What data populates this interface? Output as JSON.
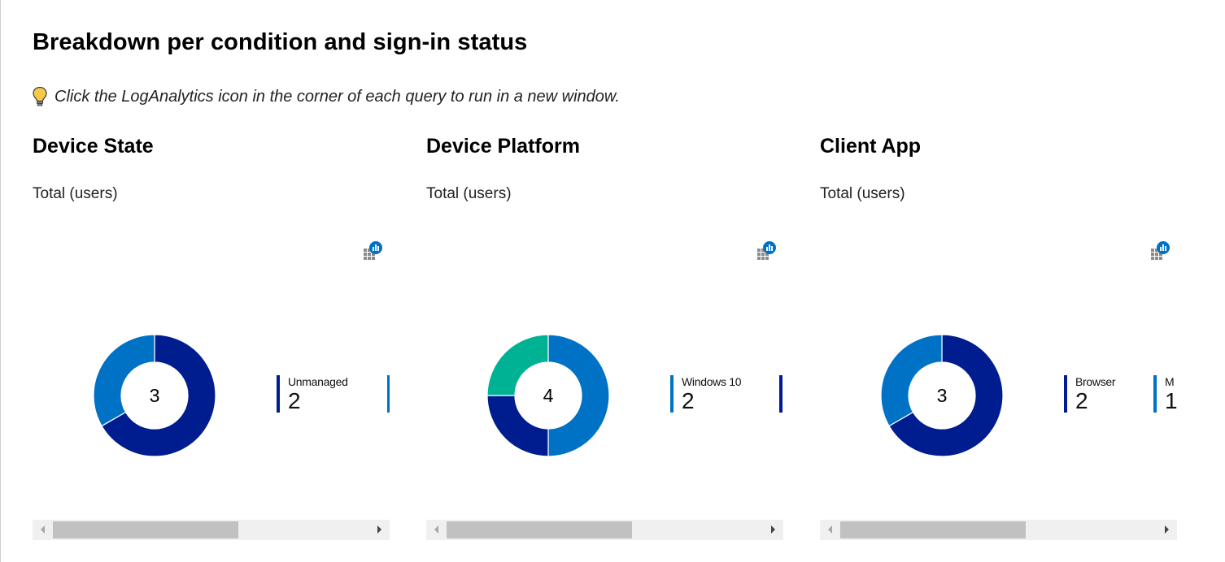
{
  "header": {
    "title": "Breakdown per condition and sign-in status",
    "tip": "Click the LogAnalytics icon in the corner of each query to run in a new window.",
    "tip_icon": "lightbulb-icon"
  },
  "colors": {
    "dark_blue": "#001d8f",
    "mid_blue": "#0072c6",
    "teal": "#00b294"
  },
  "panels": [
    {
      "title": "Device State",
      "subtitle": "Total (users)",
      "icon": "loganalytics-icon",
      "total": "3",
      "chart_data": {
        "type": "pie",
        "slices": [
          {
            "name": "Unmanaged",
            "value": 2,
            "color": "#001d8f"
          },
          {
            "name": "",
            "value": 1,
            "color": "#0072c6"
          }
        ],
        "center_label": "3"
      },
      "legend": [
        {
          "label": "Unmanaged",
          "value": "2",
          "color": "#001d8f"
        },
        {
          "label": "",
          "value": "",
          "color": "#0072c6"
        }
      ]
    },
    {
      "title": "Device Platform",
      "subtitle": "Total (users)",
      "icon": "loganalytics-icon",
      "total": "4",
      "chart_data": {
        "type": "pie",
        "slices": [
          {
            "name": "Windows 10",
            "value": 2,
            "color": "#0072c6"
          },
          {
            "name": "",
            "value": 1,
            "color": "#001d8f"
          },
          {
            "name": "",
            "value": 1,
            "color": "#00b294"
          }
        ],
        "center_label": "4"
      },
      "legend": [
        {
          "label": "Windows 10",
          "value": "2",
          "color": "#0072c6"
        },
        {
          "label": "",
          "value": "",
          "color": "#001d8f"
        }
      ]
    },
    {
      "title": "Client App",
      "subtitle": "Total (users)",
      "icon": "loganalytics-icon",
      "total": "3",
      "chart_data": {
        "type": "pie",
        "slices": [
          {
            "name": "Browser",
            "value": 2,
            "color": "#001d8f"
          },
          {
            "name": "M",
            "value": 1,
            "color": "#0072c6"
          }
        ],
        "center_label": "3"
      },
      "legend": [
        {
          "label": "Browser",
          "value": "2",
          "color": "#001d8f"
        },
        {
          "label": "M",
          "value": "1",
          "color": "#0072c6"
        }
      ]
    }
  ]
}
